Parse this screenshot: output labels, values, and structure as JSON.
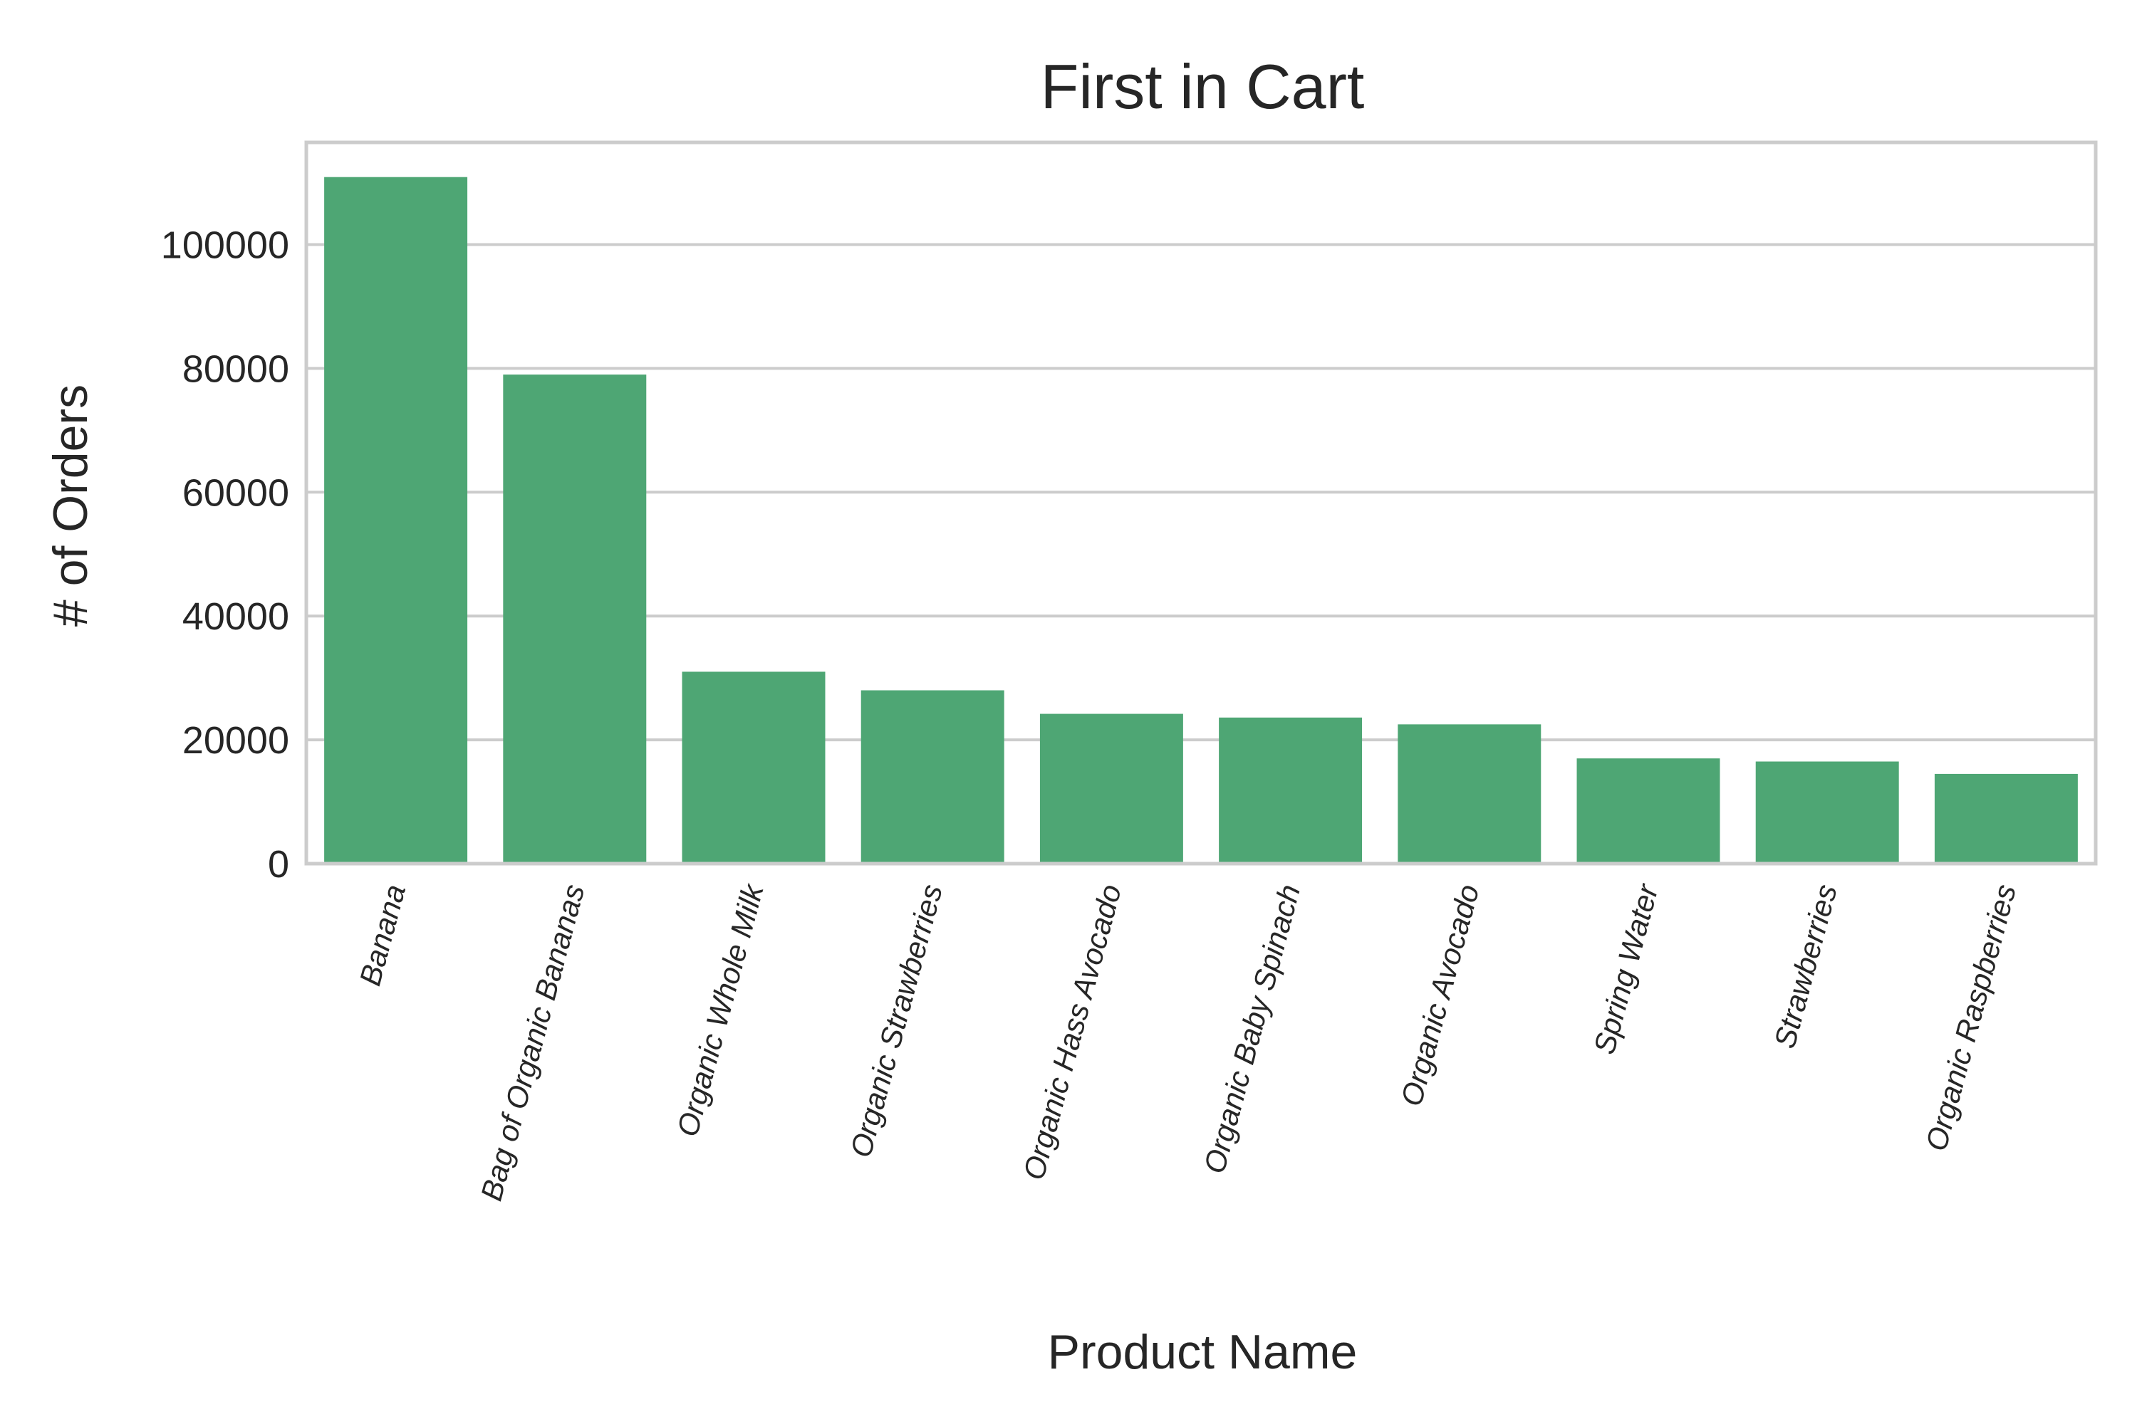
{
  "chart_data": {
    "type": "bar",
    "title": "First in Cart",
    "xlabel": "Product Name",
    "ylabel": "# of Orders",
    "categories": [
      "Banana",
      "Bag of Organic Bananas",
      "Organic Whole Milk",
      "Organic Strawberries",
      "Organic Hass Avocado",
      "Organic Baby Spinach",
      "Organic Avocado",
      "Spring Water",
      "Strawberries",
      "Organic Raspberries"
    ],
    "values": [
      110900,
      79000,
      31000,
      28000,
      24200,
      23600,
      22500,
      17000,
      16500,
      14500
    ],
    "ylim": [
      0,
      116500
    ],
    "yticks": [
      0,
      20000,
      40000,
      60000,
      80000,
      100000
    ],
    "ytick_labels": [
      "0",
      "20000",
      "40000",
      "60000",
      "80000",
      "100000"
    ],
    "grid": "y",
    "bar_color": "#4ea674",
    "grid_color": "#cccccc",
    "text_color": "#262626"
  }
}
